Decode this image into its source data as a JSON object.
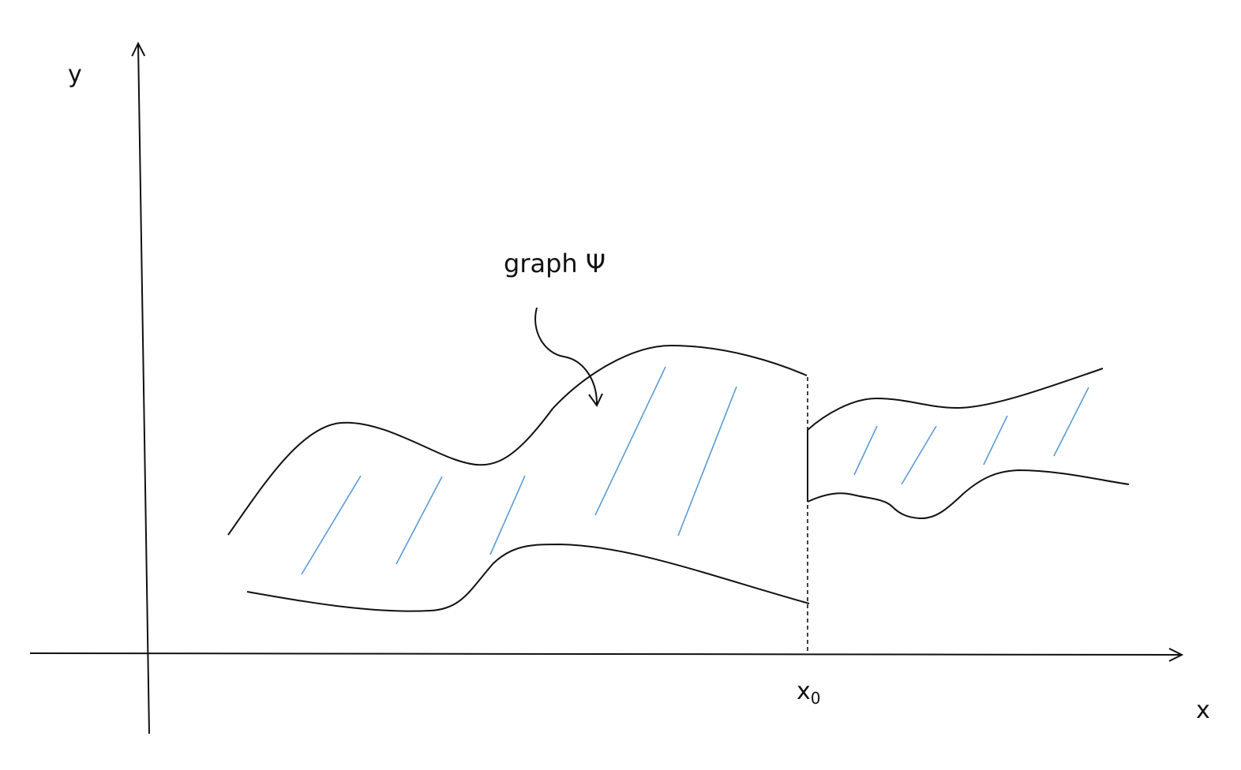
{
  "diagram": {
    "axes": {
      "x_label": "x",
      "y_label": "y"
    },
    "annotation": {
      "text": "graph Ψ"
    },
    "marker": {
      "base": "x",
      "subscript": "0"
    },
    "colors": {
      "outline": "#111111",
      "hatch": "#5b9bd5"
    }
  }
}
